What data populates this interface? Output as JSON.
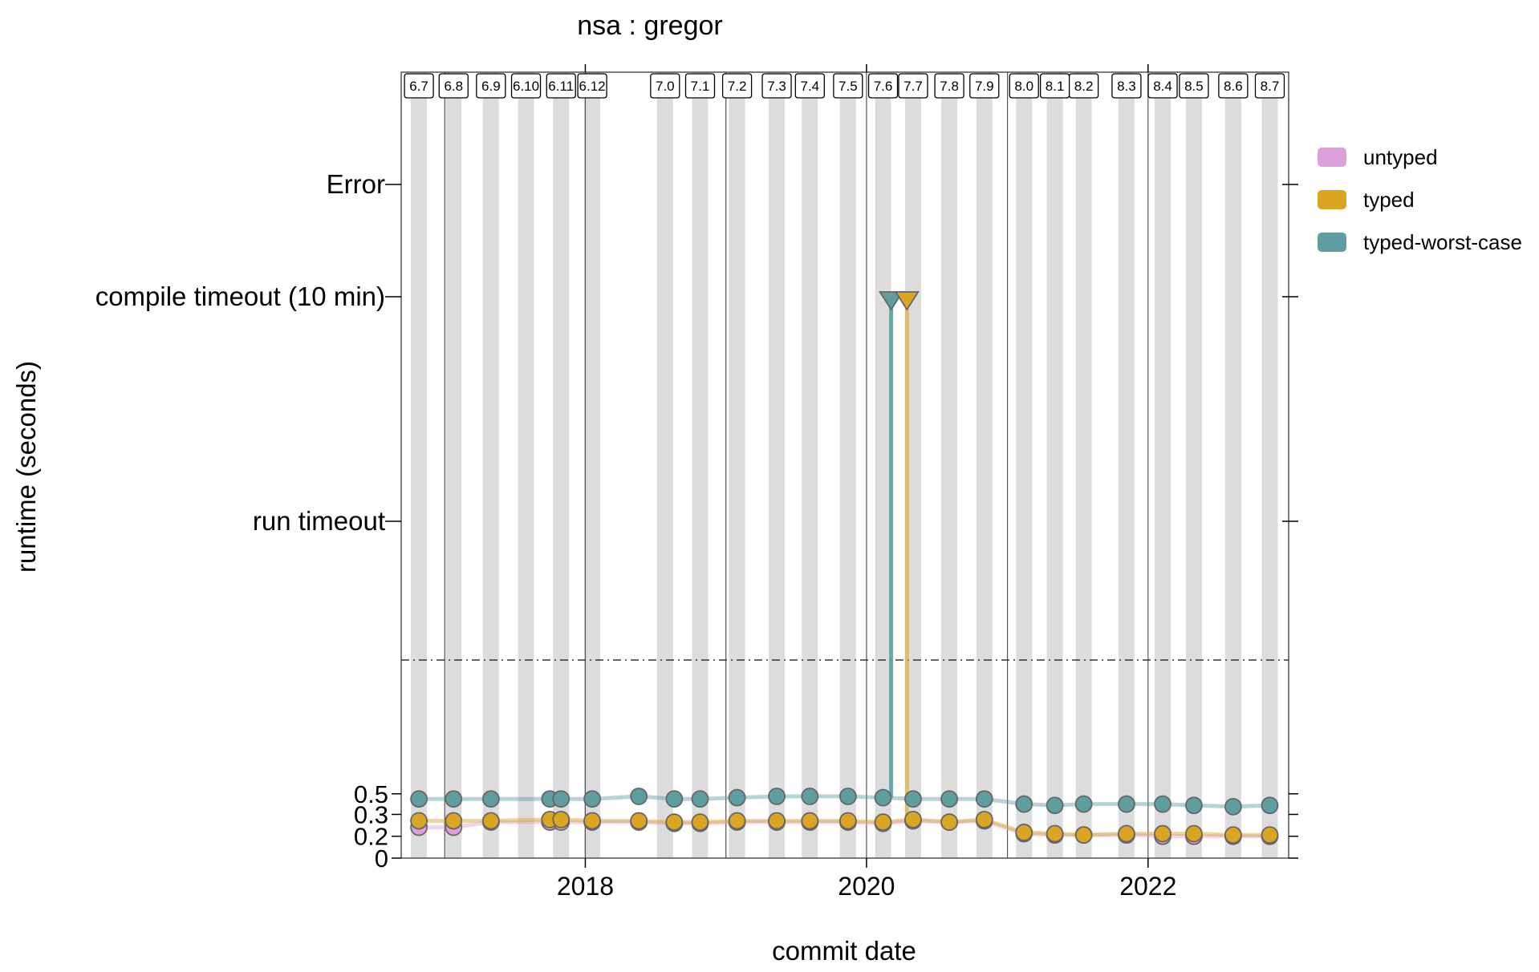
{
  "chart_data": {
    "type": "line",
    "title": "nsa : gregor",
    "xlabel": "commit date",
    "ylabel": "runtime (seconds)",
    "x_range": [
      "2016-09-10",
      "2023-01-01"
    ],
    "x_ticks": [
      {
        "label": "2018",
        "date": "2018-01-01"
      },
      {
        "label": "2020",
        "date": "2020-01-01"
      },
      {
        "label": "2022",
        "date": "2022-01-01"
      }
    ],
    "y_range": [
      0,
      0.53
    ],
    "y_ticks": [
      {
        "label": "0",
        "value": 0
      },
      {
        "label": "0.2",
        "value": 0.17
      },
      {
        "label": "0.3",
        "value": 0.34
      },
      {
        "label": "0.5",
        "value": 0.5
      }
    ],
    "y_categories": [
      {
        "label": "run timeout",
        "key": "run_timeout"
      },
      {
        "label": "compile timeout (10 min)",
        "key": "compile_timeout"
      },
      {
        "label": "Error",
        "key": "error"
      }
    ],
    "grid": false,
    "legend_position": "right",
    "release_versions": [
      {
        "label": "6.7",
        "date": "2016-10-26"
      },
      {
        "label": "6.8",
        "date": "2017-01-24"
      },
      {
        "label": "6.9",
        "date": "2017-05-01"
      },
      {
        "label": "6.10",
        "date": "2017-07-31"
      },
      {
        "label": "6.11",
        "date": "2017-10-30"
      },
      {
        "label": "6.12",
        "date": "2018-01-19"
      },
      {
        "label": "7.0",
        "date": "2018-07-27"
      },
      {
        "label": "7.1",
        "date": "2018-10-26"
      },
      {
        "label": "7.2",
        "date": "2019-01-30"
      },
      {
        "label": "7.3",
        "date": "2019-05-13"
      },
      {
        "label": "7.4",
        "date": "2019-08-07"
      },
      {
        "label": "7.5",
        "date": "2019-11-14"
      },
      {
        "label": "7.6",
        "date": "2020-02-13"
      },
      {
        "label": "7.7",
        "date": "2020-05-01"
      },
      {
        "label": "7.8",
        "date": "2020-08-03"
      },
      {
        "label": "7.9",
        "date": "2020-11-02"
      },
      {
        "label": "8.0",
        "date": "2021-02-13"
      },
      {
        "label": "8.1",
        "date": "2021-05-04"
      },
      {
        "label": "8.2",
        "date": "2021-07-18"
      },
      {
        "label": "8.3",
        "date": "2021-11-06"
      },
      {
        "label": "8.4",
        "date": "2022-02-08"
      },
      {
        "label": "8.5",
        "date": "2022-04-30"
      },
      {
        "label": "8.6",
        "date": "2022-08-10"
      },
      {
        "label": "8.7",
        "date": "2022-11-13"
      }
    ],
    "series": [
      {
        "name": "untyped",
        "color": "#dda0dd",
        "points": [
          {
            "x": "2016-10-26",
            "y": 0.24
          },
          {
            "x": "2017-01-24",
            "y": 0.24
          },
          {
            "x": "2017-05-01",
            "y": 0.28
          },
          {
            "x": "2017-10-01",
            "y": 0.28
          },
          {
            "x": "2017-10-30",
            "y": 0.28
          },
          {
            "x": "2018-01-19",
            "y": 0.28
          },
          {
            "x": "2018-05-20",
            "y": 0.28
          },
          {
            "x": "2018-08-20",
            "y": 0.27
          },
          {
            "x": "2018-10-26",
            "y": 0.27
          },
          {
            "x": "2019-01-30",
            "y": 0.28
          },
          {
            "x": "2019-05-13",
            "y": 0.28
          },
          {
            "x": "2019-08-07",
            "y": 0.28
          },
          {
            "x": "2019-11-14",
            "y": 0.28
          },
          {
            "x": "2020-02-13",
            "y": 0.27
          },
          {
            "x": "2020-05-01",
            "y": 0.29
          },
          {
            "x": "2020-08-03",
            "y": 0.28
          },
          {
            "x": "2020-11-02",
            "y": 0.29
          },
          {
            "x": "2021-02-13",
            "y": 0.19
          },
          {
            "x": "2021-05-04",
            "y": 0.18
          },
          {
            "x": "2021-07-18",
            "y": 0.18
          },
          {
            "x": "2021-11-06",
            "y": 0.18
          },
          {
            "x": "2022-02-08",
            "y": 0.17
          },
          {
            "x": "2022-04-30",
            "y": 0.17
          },
          {
            "x": "2022-08-10",
            "y": 0.17
          },
          {
            "x": "2022-11-13",
            "y": 0.17
          }
        ]
      },
      {
        "name": "typed",
        "color": "#daa520",
        "points": [
          {
            "x": "2016-10-26",
            "y": 0.29
          },
          {
            "x": "2017-01-24",
            "y": 0.29
          },
          {
            "x": "2017-05-01",
            "y": 0.29
          },
          {
            "x": "2017-10-01",
            "y": 0.3
          },
          {
            "x": "2017-10-30",
            "y": 0.3
          },
          {
            "x": "2018-01-19",
            "y": 0.29
          },
          {
            "x": "2018-05-20",
            "y": 0.29
          },
          {
            "x": "2018-08-20",
            "y": 0.28
          },
          {
            "x": "2018-10-26",
            "y": 0.28
          },
          {
            "x": "2019-01-30",
            "y": 0.29
          },
          {
            "x": "2019-05-13",
            "y": 0.29
          },
          {
            "x": "2019-08-07",
            "y": 0.29
          },
          {
            "x": "2019-11-14",
            "y": 0.29
          },
          {
            "x": "2020-02-13",
            "y": 0.28
          },
          {
            "x": "2020-05-01",
            "y": 0.3
          },
          {
            "x": "2020-08-03",
            "y": 0.28
          },
          {
            "x": "2020-11-02",
            "y": 0.3
          },
          {
            "x": "2021-02-13",
            "y": 0.2
          },
          {
            "x": "2021-05-04",
            "y": 0.19
          },
          {
            "x": "2021-07-18",
            "y": 0.18
          },
          {
            "x": "2021-11-06",
            "y": 0.19
          },
          {
            "x": "2022-02-08",
            "y": 0.19
          },
          {
            "x": "2022-04-30",
            "y": 0.19
          },
          {
            "x": "2022-08-10",
            "y": 0.18
          },
          {
            "x": "2022-11-13",
            "y": 0.18
          }
        ]
      },
      {
        "name": "typed-worst-case",
        "color": "#5f9ea0",
        "points": [
          {
            "x": "2016-10-26",
            "y": 0.46
          },
          {
            "x": "2017-01-24",
            "y": 0.46
          },
          {
            "x": "2017-05-01",
            "y": 0.46
          },
          {
            "x": "2017-10-01",
            "y": 0.46
          },
          {
            "x": "2017-10-30",
            "y": 0.46
          },
          {
            "x": "2018-01-19",
            "y": 0.46
          },
          {
            "x": "2018-05-20",
            "y": 0.48
          },
          {
            "x": "2018-08-20",
            "y": 0.46
          },
          {
            "x": "2018-10-26",
            "y": 0.46
          },
          {
            "x": "2019-01-30",
            "y": 0.47
          },
          {
            "x": "2019-05-13",
            "y": 0.48
          },
          {
            "x": "2019-08-07",
            "y": 0.48
          },
          {
            "x": "2019-11-14",
            "y": 0.48
          },
          {
            "x": "2020-02-13",
            "y": 0.47
          },
          {
            "x": "2020-05-01",
            "y": 0.46
          },
          {
            "x": "2020-08-03",
            "y": 0.46
          },
          {
            "x": "2020-11-02",
            "y": 0.46
          },
          {
            "x": "2021-02-13",
            "y": 0.42
          },
          {
            "x": "2021-05-04",
            "y": 0.41
          },
          {
            "x": "2021-07-18",
            "y": 0.42
          },
          {
            "x": "2021-11-06",
            "y": 0.42
          },
          {
            "x": "2022-02-08",
            "y": 0.42
          },
          {
            "x": "2022-04-30",
            "y": 0.41
          },
          {
            "x": "2022-08-10",
            "y": 0.4
          },
          {
            "x": "2022-11-13",
            "y": 0.41
          }
        ]
      }
    ],
    "compile_timeouts": [
      {
        "x": "2020-03-05",
        "series": "typed-worst-case"
      },
      {
        "x": "2020-04-15",
        "series": "typed"
      }
    ]
  }
}
